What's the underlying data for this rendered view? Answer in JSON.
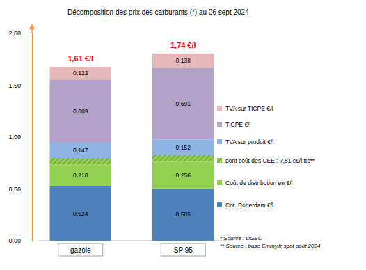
{
  "chart_data": {
    "type": "bar",
    "title": "Décomposition des prix des carburants (*) au 06 sept 2024",
    "categories": [
      "gazole",
      "SP 95"
    ],
    "stacked": true,
    "data_labels": true,
    "legend": "right",
    "grid": false,
    "ylim": [
      0,
      2
    ],
    "yticks": [
      {
        "value": 0,
        "label": "0,00"
      },
      {
        "value": 0.5,
        "label": "0,50"
      },
      {
        "value": 1,
        "label": "1,00"
      },
      {
        "value": 1.5,
        "label": "1,50"
      },
      {
        "value": 2,
        "label": "2,00"
      }
    ],
    "series": [
      {
        "name": "Cot. Rotterdam €/l",
        "color": "#4f81bd",
        "values": [
          0.524,
          0.505
        ],
        "value_labels": [
          "0,524",
          "0,505"
        ]
      },
      {
        "name": "Coût de distribution en €/l",
        "color": "#92d050",
        "values": [
          0.21,
          0.256
        ],
        "value_labels": [
          "0,210",
          "0,256"
        ]
      },
      {
        "name": "dont coût des CEE : 7,81 c€/l ttc**",
        "color": "#77a33a",
        "line_style": "hatched",
        "values": [
          0.065,
          0.065
        ]
      },
      {
        "name": "TVA sur produit €/l",
        "color": "#8db4e2",
        "values": [
          0.147,
          0.152
        ],
        "value_labels": [
          "0,147",
          "0,152"
        ]
      },
      {
        "name": "TICPE €/l",
        "color": "#b3a2c7",
        "values": [
          0.609,
          0.691
        ],
        "value_labels": [
          "0,609",
          "0,691"
        ]
      },
      {
        "name": "TVA sur TICPE €/l",
        "color": "#e6b8b7",
        "values": [
          0.122,
          0.138
        ],
        "value_labels": [
          "0,122",
          "0,138"
        ]
      }
    ],
    "totals": {
      "values": [
        1.61,
        1.74
      ],
      "value_labels": [
        "1,61 €/l",
        "1,74 €/l"
      ],
      "color": "#ff0000"
    },
    "notes": [
      "* Source : DGEC",
      "** Source : base Emmy.fr spot août 2024"
    ]
  }
}
